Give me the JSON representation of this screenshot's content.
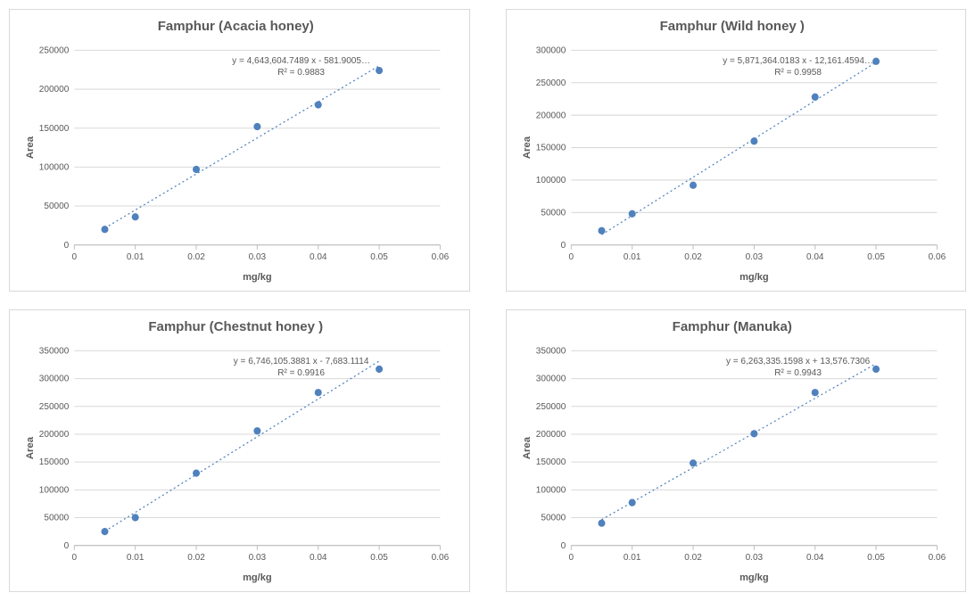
{
  "layout": {
    "cols": 2,
    "rows": 2,
    "panel_border_color": "#d9d9d9",
    "background_color": "#ffffff"
  },
  "common": {
    "xlabel": "mg/kg",
    "ylabel": "Area",
    "x_ticklabels": [
      "0",
      "0.01",
      "0.02",
      "0.03",
      "0.04",
      "0.05",
      "0.06"
    ],
    "x_tickvalues": [
      0,
      0.01,
      0.02,
      0.03,
      0.04,
      0.05,
      0.06
    ],
    "xlim": [
      0,
      0.06
    ],
    "marker_color": "#4f81bd",
    "marker_radius": 4,
    "trend_color": "#4f81bd",
    "trend_dash": "2 3",
    "grid_color": "#d9d9d9",
    "axis_color": "#bfbfbf",
    "title_fontsize": 15,
    "title_fontweight": "bold",
    "title_color": "#595959",
    "label_fontsize": 11,
    "tick_fontsize": 10,
    "eq_fontsize": 10
  },
  "charts": [
    {
      "id": "acacia",
      "title": "Famphur (Acacia honey)",
      "type": "scatter-linear",
      "y_ticklabels": [
        "0",
        "50000",
        "100000",
        "150000",
        "200000",
        "250000"
      ],
      "y_tickvalues": [
        0,
        50000,
        100000,
        150000,
        200000,
        250000
      ],
      "ylim": [
        0,
        250000
      ],
      "x": [
        0.005,
        0.01,
        0.02,
        0.03,
        0.04,
        0.05
      ],
      "y": [
        20000,
        36000,
        97000,
        152000,
        180000,
        224000
      ],
      "eq_line1": "y = 4,643,604.7489 x - 581.9005",
      "eq_line2": "R² = 0.9883",
      "eq_truncated": true
    },
    {
      "id": "wild",
      "title": "Famphur (Wild honey )",
      "type": "scatter-linear",
      "y_ticklabels": [
        "0",
        "50000",
        "100000",
        "150000",
        "200000",
        "250000",
        "300000"
      ],
      "y_tickvalues": [
        0,
        50000,
        100000,
        150000,
        200000,
        250000,
        300000
      ],
      "ylim": [
        0,
        300000
      ],
      "x": [
        0.005,
        0.01,
        0.02,
        0.03,
        0.04,
        0.05
      ],
      "y": [
        22000,
        48000,
        92000,
        160000,
        228000,
        283000
      ],
      "eq_line1": "y = 5,871,364.0183 x - 12,161.4594",
      "eq_line2": "R² = 0.9958",
      "eq_truncated": true
    },
    {
      "id": "chestnut",
      "title": "Famphur (Chestnut honey )",
      "type": "scatter-linear",
      "y_ticklabels": [
        "0",
        "50000",
        "100000",
        "150000",
        "200000",
        "250000",
        "300000",
        "350000"
      ],
      "y_tickvalues": [
        0,
        50000,
        100000,
        150000,
        200000,
        250000,
        300000,
        350000
      ],
      "ylim": [
        0,
        350000
      ],
      "x": [
        0.005,
        0.01,
        0.02,
        0.03,
        0.04,
        0.05
      ],
      "y": [
        25000,
        50000,
        130000,
        206000,
        275000,
        317000
      ],
      "eq_line1": "y = 6,746,105.3881 x - 7,683.1114",
      "eq_line2": "R² = 0.9916",
      "eq_truncated": false
    },
    {
      "id": "manuka",
      "title": "Famphur (Manuka)",
      "type": "scatter-linear",
      "y_ticklabels": [
        "0",
        "50000",
        "100000",
        "150000",
        "200000",
        "250000",
        "300000",
        "350000"
      ],
      "y_tickvalues": [
        0,
        50000,
        100000,
        150000,
        200000,
        250000,
        300000,
        350000
      ],
      "ylim": [
        0,
        350000
      ],
      "x": [
        0.005,
        0.01,
        0.02,
        0.03,
        0.04,
        0.05
      ],
      "y": [
        40000,
        77000,
        148000,
        201000,
        275000,
        317000
      ],
      "eq_line1": "y = 6,263,335.1598 x + 13,576.7306",
      "eq_line2": "R² = 0.9943",
      "eq_truncated": false
    }
  ]
}
